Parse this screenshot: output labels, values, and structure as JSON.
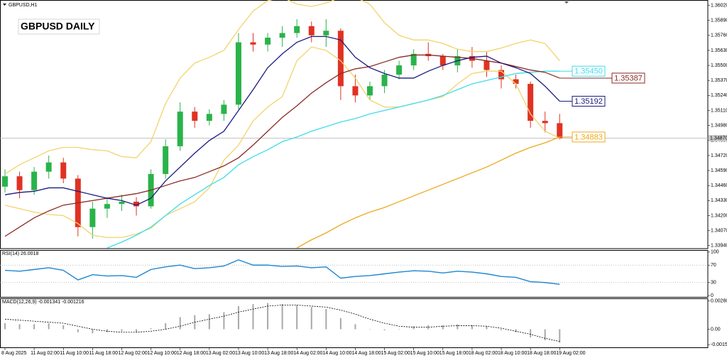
{
  "chart_data": [
    {
      "type": "candlestick",
      "symbol": "GBPUSD,H1",
      "title": "GBPUSD DAILY",
      "categories": [
        "8 Aug 2025",
        null,
        "11 Aug 02:00",
        null,
        "11 Aug 10:00",
        null,
        "11 Aug 18:00",
        null,
        "12 Aug 02:00",
        null,
        "12 Aug 10:00",
        null,
        "12 Aug 18:00",
        null,
        "13 Aug 02:00",
        null,
        "13 Aug 10:00",
        null,
        "13 Aug 18:00",
        null,
        "14 Aug 02:00",
        null,
        "14 Aug 10:00",
        null,
        "14 Aug 18:00",
        null,
        "15 Aug 02:00",
        null,
        "15 Aug 10:00",
        null,
        "15 Aug 18:00",
        null,
        "18 Aug 02:00",
        null,
        "18 Aug 10:00",
        null,
        "18 Aug 18:00",
        null,
        "19 Aug 02:00"
      ],
      "open": [
        1.3445,
        1.3454,
        1.3442,
        1.3458,
        1.3466,
        1.3452,
        1.341,
        1.3426,
        1.343,
        1.3432,
        1.3428,
        1.3456,
        1.348,
        1.351,
        1.3502,
        1.3508,
        1.3516,
        1.357,
        1.3568,
        1.3574,
        1.3578,
        1.3584,
        1.3576,
        1.358,
        1.3532,
        1.3524,
        1.3532,
        1.3542,
        1.355,
        1.356,
        1.3558,
        1.355,
        1.3558,
        1.3554,
        1.3546,
        1.3538,
        1.3534,
        1.3502,
        1.35
      ],
      "high": [
        1.346,
        1.3458,
        1.3462,
        1.3472,
        1.347,
        1.3455,
        1.3432,
        1.3436,
        1.3438,
        1.3436,
        1.346,
        1.3486,
        1.3518,
        1.3514,
        1.3512,
        1.352,
        1.3578,
        1.3578,
        1.3578,
        1.3584,
        1.359,
        1.3588,
        1.359,
        1.3582,
        1.3542,
        1.3536,
        1.3546,
        1.3554,
        1.3564,
        1.357,
        1.356,
        1.3564,
        1.3566,
        1.3562,
        1.355,
        1.3542,
        1.3536,
        1.351,
        1.3508
      ],
      "low": [
        1.344,
        1.3435,
        1.3438,
        1.3452,
        1.3448,
        1.3402,
        1.34,
        1.3418,
        1.3424,
        1.342,
        1.3426,
        1.3452,
        1.3476,
        1.3496,
        1.3498,
        1.3502,
        1.3512,
        1.3562,
        1.3562,
        1.3566,
        1.3574,
        1.357,
        1.3566,
        1.352,
        1.3518,
        1.352,
        1.3526,
        1.3538,
        1.3546,
        1.3554,
        1.3546,
        1.3544,
        1.3548,
        1.354,
        1.353,
        1.353,
        1.3496,
        1.3492,
        1.3486
      ],
      "close": [
        1.3454,
        1.3442,
        1.3458,
        1.3466,
        1.3452,
        1.341,
        1.3426,
        1.343,
        1.3432,
        1.3428,
        1.3456,
        1.348,
        1.351,
        1.3502,
        1.3508,
        1.3516,
        1.357,
        1.3568,
        1.3574,
        1.3578,
        1.3584,
        1.3576,
        1.358,
        1.3532,
        1.3524,
        1.3532,
        1.3542,
        1.355,
        1.356,
        1.3558,
        1.355,
        1.3558,
        1.3554,
        1.3546,
        1.3538,
        1.3534,
        1.3502,
        1.35,
        1.3487
      ],
      "up_color": "#2ab34a",
      "down_color": "#e03224",
      "overlays": [
        {
          "color": "#f2d36b",
          "values": [
            1.3456,
            1.3464,
            1.347,
            1.3476,
            1.3479,
            1.3479,
            1.3477,
            1.3476,
            1.3471,
            1.347,
            1.3484,
            1.3517,
            1.3539,
            1.3552,
            1.3557,
            1.3563,
            1.3581,
            1.3597,
            1.3606,
            1.3609,
            1.3603,
            1.3601,
            1.3604,
            1.3609,
            1.3609,
            1.3603,
            1.3587,
            1.3576,
            1.3572,
            1.3572,
            1.3569,
            1.3564,
            1.3562,
            1.3562,
            1.3565,
            1.3569,
            1.3572,
            1.3569,
            1.3554
          ]
        },
        {
          "color": "#f2d36b",
          "values": [
            1.3429,
            1.3426,
            1.3423,
            1.3421,
            1.342,
            1.3413,
            1.3403,
            1.3401,
            1.3401,
            1.3404,
            1.3409,
            1.342,
            1.3426,
            1.3432,
            1.3444,
            1.3468,
            1.3481,
            1.3502,
            1.3514,
            1.3523,
            1.3554,
            1.3566,
            1.3563,
            1.3554,
            1.3539,
            1.352,
            1.3514,
            1.3514,
            1.3517,
            1.352,
            1.3523,
            1.3534,
            1.3543,
            1.3545,
            1.3545,
            1.3534,
            1.3508,
            1.3493,
            1.3487
          ]
        },
        {
          "color": "#3fdcec",
          "end_label": "1.35450",
          "values": [
            null,
            null,
            null,
            null,
            null,
            null,
            null,
            1.3392,
            1.3397,
            1.3403,
            1.341,
            1.342,
            1.343,
            1.3438,
            1.3446,
            1.3453,
            1.3464,
            1.3471,
            1.3477,
            1.3484,
            1.3488,
            1.3493,
            1.3497,
            1.3501,
            1.3504,
            1.3508,
            1.3511,
            1.3514,
            1.3517,
            1.352,
            1.3524,
            1.3529,
            1.3534,
            1.3537,
            1.354,
            1.3543,
            1.3544,
            1.3545,
            1.3545
          ]
        },
        {
          "color": "#eda81c",
          "end_label": "1.34883",
          "values": [
            null,
            null,
            null,
            null,
            null,
            null,
            null,
            null,
            null,
            null,
            null,
            null,
            null,
            null,
            null,
            null,
            null,
            null,
            null,
            null,
            1.3392,
            1.3399,
            1.3405,
            1.3412,
            1.3418,
            1.3423,
            1.3427,
            1.3432,
            1.3437,
            1.3442,
            1.3447,
            1.3452,
            1.3457,
            1.3462,
            1.3468,
            1.3474,
            1.3479,
            1.3483,
            1.3488
          ]
        },
        {
          "color": "#8a2a25",
          "end_label": "1.35387",
          "values": [
            1.3402,
            1.341,
            1.3418,
            1.3424,
            1.3429,
            1.3431,
            1.3433,
            1.3435,
            1.3437,
            1.3439,
            1.3442,
            1.3446,
            1.345,
            1.3453,
            1.3458,
            1.3463,
            1.347,
            1.3481,
            1.3493,
            1.3505,
            1.3515,
            1.3526,
            1.3535,
            1.3543,
            1.3547,
            1.3549,
            1.3553,
            1.3557,
            1.3559,
            1.3559,
            1.3558,
            1.3557,
            1.3556,
            1.3554,
            1.3552,
            1.3549,
            1.3546,
            1.3544,
            1.3539
          ]
        },
        {
          "color": "#1b1a7e",
          "end_label": "1.35192",
          "values": [
            1.3438,
            1.344,
            1.3441,
            1.3444,
            1.3444,
            1.3441,
            1.3438,
            1.3435,
            1.3433,
            1.3429,
            1.3435,
            1.345,
            1.3462,
            1.3474,
            1.3485,
            1.3493,
            1.3511,
            1.3529,
            1.3548,
            1.356,
            1.357,
            1.3575,
            1.3575,
            1.3572,
            1.3557,
            1.3548,
            1.3543,
            1.3539,
            1.3539,
            1.3545,
            1.355,
            1.3554,
            1.3557,
            1.3558,
            1.3552,
            1.3548,
            1.3543,
            1.3532,
            1.3519
          ]
        }
      ],
      "current_price": {
        "value": 1.3487,
        "label": "1.34870"
      },
      "ylim": [
        1.3392,
        1.3606
      ],
      "yticks": [
        {
          "value": 1.3602,
          "label": "1.36020"
        },
        {
          "value": 1.3589,
          "label": "1.35890"
        },
        {
          "value": 1.3576,
          "label": "1.35760"
        },
        {
          "value": 1.3563,
          "label": "1.35630"
        },
        {
          "value": 1.355,
          "label": "1.35500"
        },
        {
          "value": 1.3537,
          "label": "1.35370"
        },
        {
          "value": 1.3524,
          "label": "1.35240"
        },
        {
          "value": 1.3511,
          "label": "1.35110"
        },
        {
          "value": 1.3498,
          "label": "1.34980"
        },
        {
          "value": 1.3485,
          "label": "1.34850"
        },
        {
          "value": 1.3472,
          "label": "1.34720"
        },
        {
          "value": 1.3459,
          "label": "1.34590"
        },
        {
          "value": 1.3446,
          "label": "1.34460"
        },
        {
          "value": 1.3433,
          "label": "1.34330"
        },
        {
          "value": 1.342,
          "label": "1.34200"
        },
        {
          "value": 1.3407,
          "label": "1.34070"
        },
        {
          "value": 1.3394,
          "label": "1.33940"
        }
      ]
    },
    {
      "type": "line",
      "title": "RSI(14) 26.0018",
      "series": [
        {
          "color": "#1e86d0",
          "values": [
            58,
            56,
            60,
            64,
            58,
            36,
            48,
            45,
            46,
            42,
            60,
            66,
            70,
            62,
            64,
            68,
            82,
            70,
            70,
            67,
            68,
            64,
            66,
            40,
            44,
            46,
            50,
            54,
            57,
            56,
            52,
            56,
            54,
            50,
            44,
            42,
            32,
            30,
            26.0018
          ]
        }
      ],
      "levels": [
        70,
        30
      ],
      "ylim": [
        -3,
        103
      ],
      "yticks": [
        100,
        70,
        30,
        0
      ]
    },
    {
      "type": "bar",
      "title": "MACD(12,26,9) -0.001341 -0.001216",
      "series": [
        {
          "type": "bar",
          "color": "#a8a8a8",
          "values": [
            0.0006,
            0.0005,
            0.0005,
            0.0006,
            0.0004,
            -0.0003,
            -0.0004,
            -0.0003,
            -0.0002,
            -0.0003,
            0.0001,
            0.0006,
            0.0012,
            0.0014,
            0.0015,
            0.0017,
            0.0023,
            0.0025,
            0.0026,
            0.0025,
            0.0024,
            0.0022,
            0.002,
            0.0011,
            0.0005,
            0,
            -0.0001,
            0,
            0.0003,
            0.0004,
            0.0004,
            0.0005,
            0.0004,
            0.0003,
            -0.0001,
            -0.0003,
            -0.0008,
            -0.0011,
            -0.001341
          ]
        },
        {
          "type": "line",
          "color": "#000000",
          "values": [
            0.001,
            0.0009,
            0.0008,
            0.0007,
            0.0006,
            0.0003,
            0,
            -0.0002,
            -0.0003,
            -0.0003,
            -0.0002,
            0,
            0.0003,
            0.0007,
            0.001,
            0.0013,
            0.0017,
            0.002,
            0.0023,
            0.0024,
            0.0024,
            0.0023,
            0.0022,
            0.0019,
            0.0015,
            0.001,
            0.0006,
            0.0003,
            0.0002,
            0.0002,
            0.0003,
            0.00035,
            0.00035,
            0.0003,
            0.0001,
            -0.0002,
            -0.0005,
            -0.0009,
            -0.001216
          ]
        }
      ],
      "ylim": [
        -0.0018,
        0.003
      ],
      "yticks": [
        0.002805,
        {
          "value": 0,
          "label": "0.00"
        },
        -0.00153
      ]
    }
  ]
}
